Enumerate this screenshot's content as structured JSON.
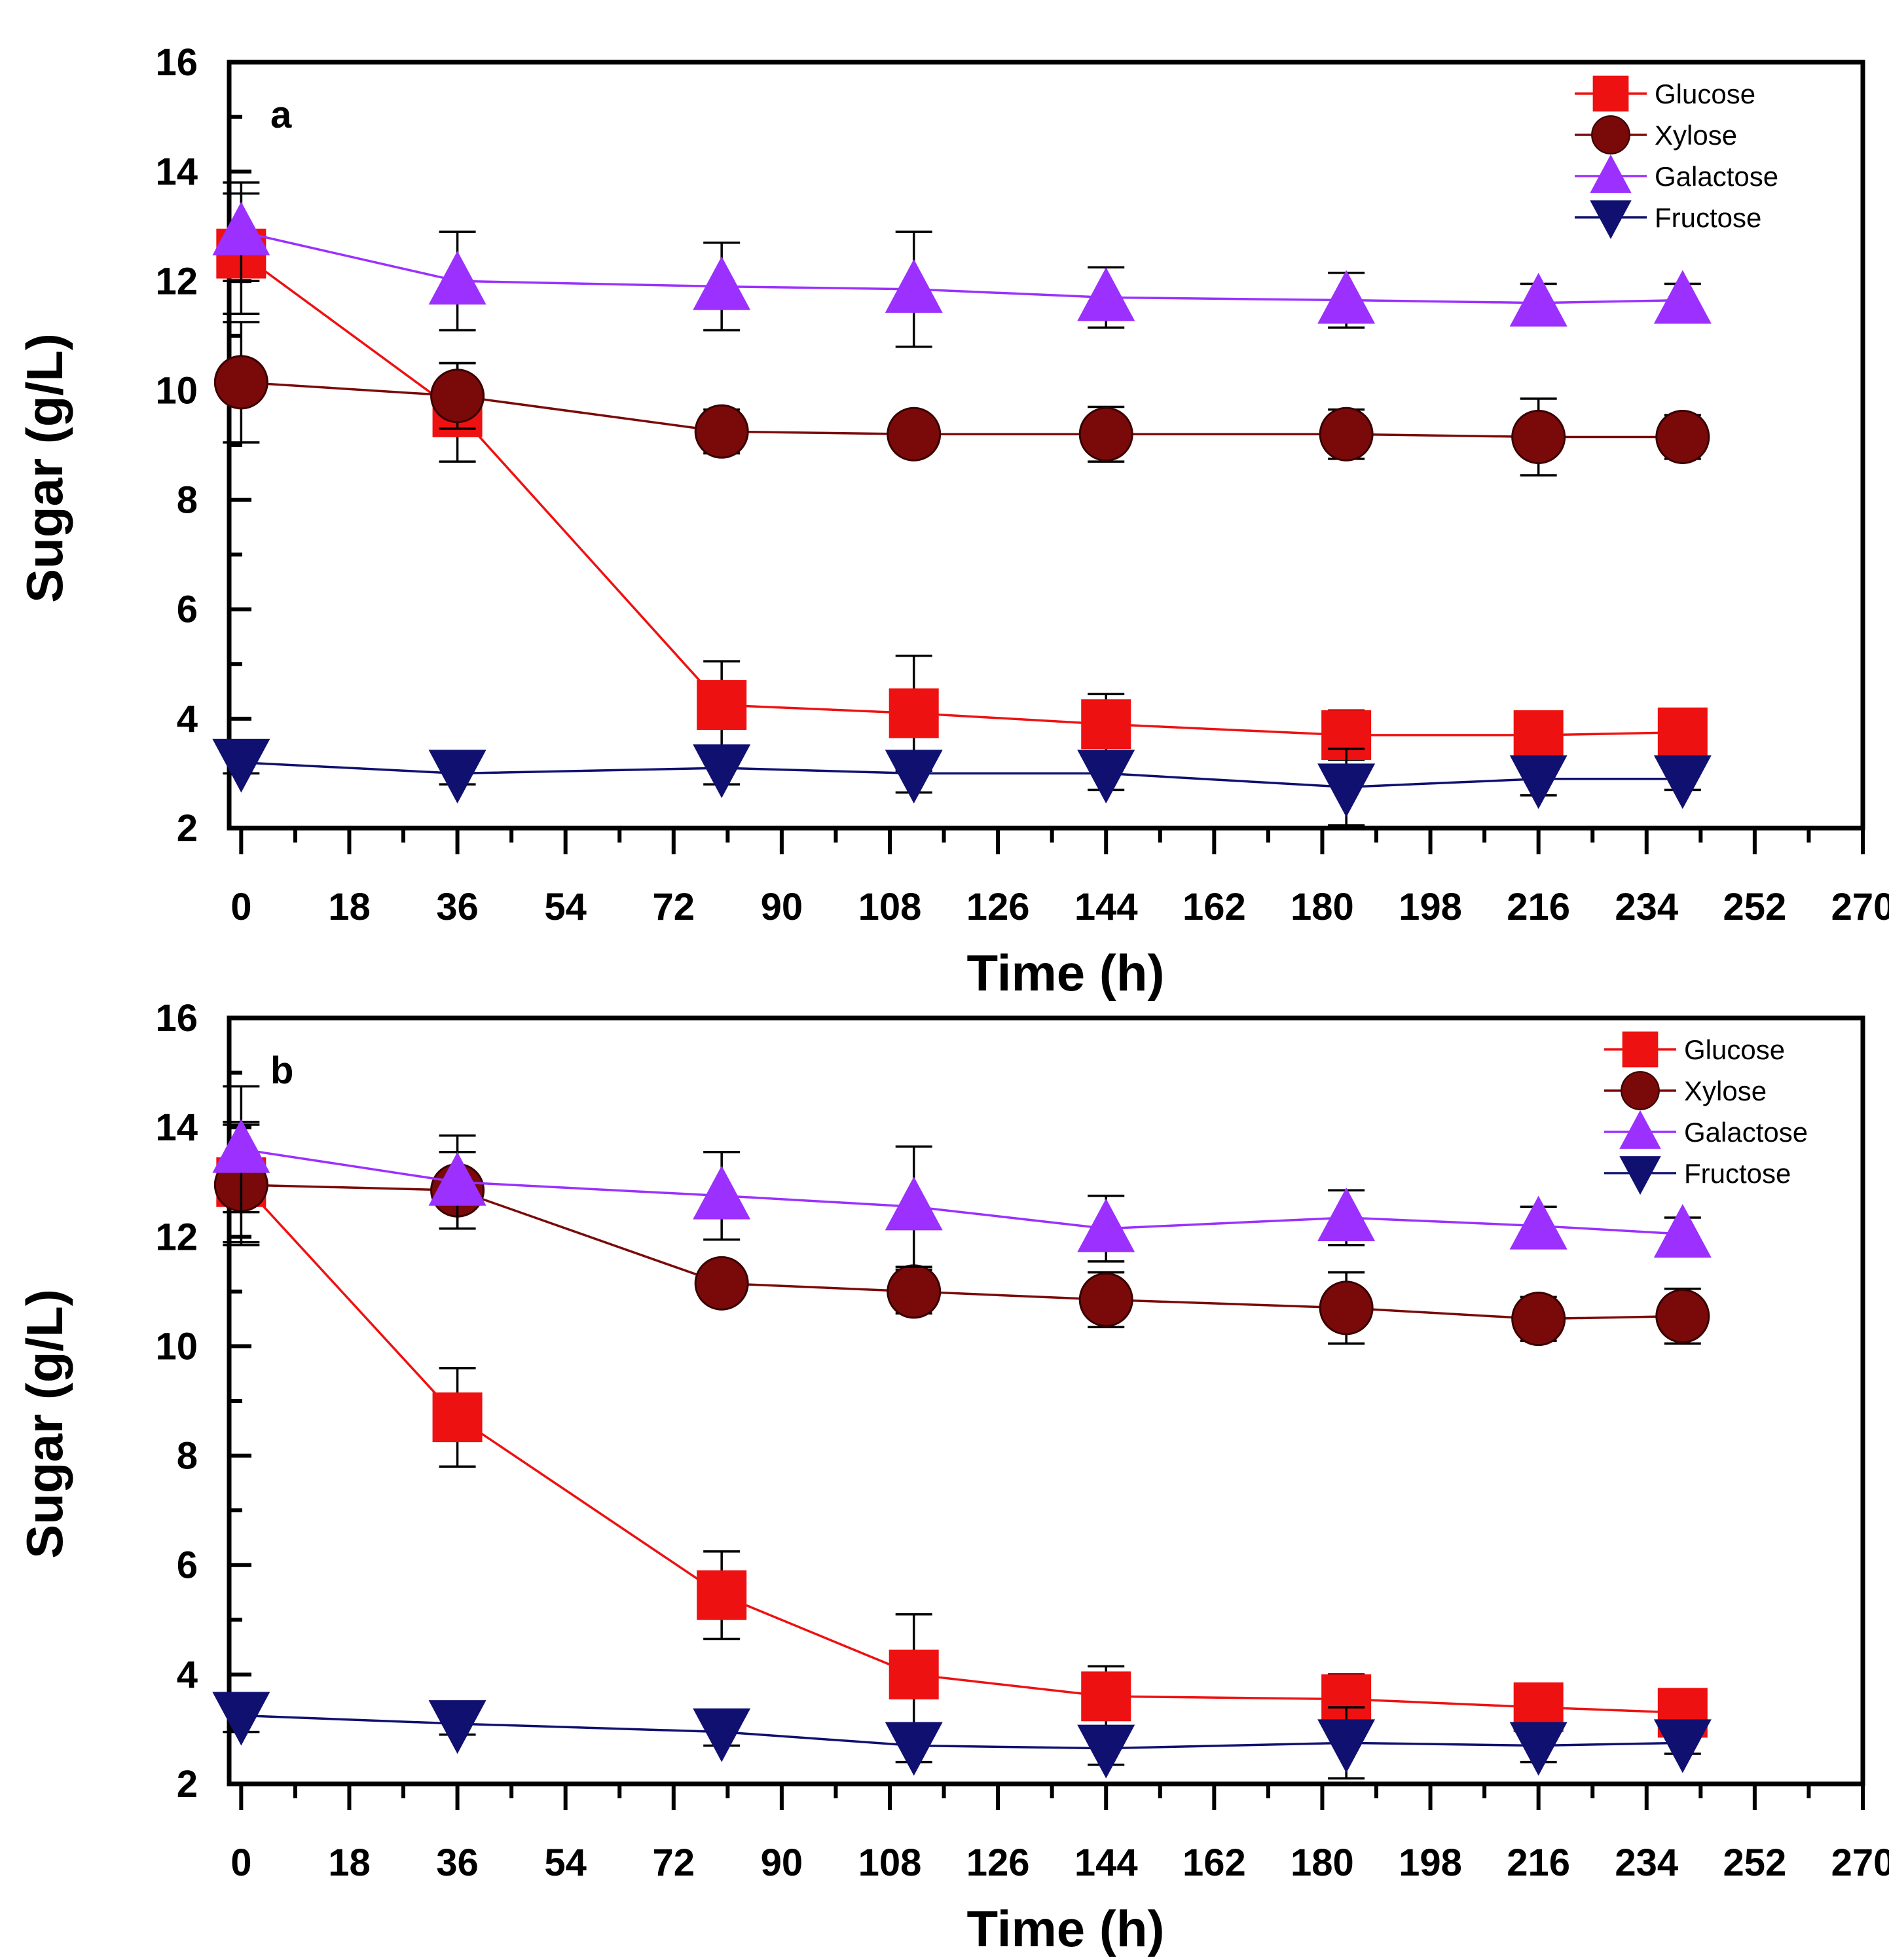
{
  "chart_data": [
    {
      "type": "line",
      "panel_label": "a",
      "xlabel": "Time (h)",
      "ylabel": "Sugar (g/L)",
      "xlim": [
        -2,
        270
      ],
      "ylim": [
        2,
        16
      ],
      "x_ticks": [
        0,
        18,
        36,
        54,
        72,
        90,
        108,
        126,
        144,
        162,
        180,
        198,
        216,
        234,
        252,
        270
      ],
      "y_ticks": [
        2,
        4,
        6,
        8,
        10,
        12,
        14,
        16
      ],
      "legend_position": "top-right",
      "x": [
        0,
        36,
        80,
        112,
        144,
        184,
        216,
        240
      ],
      "series": [
        {
          "name": "Glucose",
          "marker": "square",
          "color": "#ee1111",
          "values": [
            12.5,
            9.6,
            4.25,
            4.1,
            3.9,
            3.7,
            3.7,
            3.75
          ],
          "errors": [
            1.1,
            0.9,
            0.8,
            1.05,
            0.55,
            0.45,
            0.35,
            0.3
          ]
        },
        {
          "name": "Xylose",
          "marker": "circle",
          "color": "#7a0a0a",
          "values": [
            10.15,
            9.9,
            9.25,
            9.2,
            9.2,
            9.2,
            9.15,
            9.15
          ],
          "errors": [
            1.1,
            0.6,
            0.4,
            0.35,
            0.5,
            0.45,
            0.7,
            0.4
          ]
        },
        {
          "name": "Galactose",
          "marker": "triangle-up",
          "color": "#9b30ff",
          "values": [
            12.9,
            12.0,
            11.9,
            11.85,
            11.7,
            11.65,
            11.6,
            11.65
          ],
          "errors": [
            0.9,
            0.9,
            0.8,
            1.05,
            0.55,
            0.5,
            0.35,
            0.3
          ]
        },
        {
          "name": "Fructose",
          "marker": "triangle-down",
          "color": "#101070",
          "values": [
            3.2,
            3.0,
            3.1,
            3.0,
            3.0,
            2.75,
            2.9,
            2.9
          ],
          "errors": [
            0.2,
            0.2,
            0.3,
            0.35,
            0.3,
            0.7,
            0.3,
            0.2
          ]
        }
      ]
    },
    {
      "type": "line",
      "panel_label": "b",
      "xlabel": "Time (h)",
      "ylabel": "Sugar (g/L)",
      "xlim": [
        -2,
        270
      ],
      "ylim": [
        2,
        16
      ],
      "x_ticks": [
        0,
        18,
        36,
        54,
        72,
        90,
        108,
        126,
        144,
        162,
        180,
        198,
        216,
        234,
        252,
        270
      ],
      "y_ticks": [
        2,
        4,
        6,
        8,
        10,
        12,
        14,
        16
      ],
      "legend_position": "top-right",
      "x": [
        0,
        36,
        80,
        112,
        144,
        184,
        216,
        240
      ],
      "series": [
        {
          "name": "Glucose",
          "marker": "square",
          "color": "#ee1111",
          "values": [
            13.0,
            8.7,
            5.45,
            4.0,
            3.6,
            3.55,
            3.4,
            3.3
          ],
          "errors": [
            1.1,
            0.9,
            0.8,
            1.1,
            0.55,
            0.45,
            0.3,
            0.3
          ]
        },
        {
          "name": "Xylose",
          "marker": "circle",
          "color": "#7a0a0a",
          "values": [
            12.95,
            12.85,
            11.15,
            11.0,
            10.85,
            10.7,
            10.5,
            10.55
          ],
          "errors": [
            1.1,
            0.7,
            0.3,
            0.4,
            0.5,
            0.65,
            0.4,
            0.5
          ]
        },
        {
          "name": "Galactose",
          "marker": "triangle-up",
          "color": "#9b30ff",
          "values": [
            13.6,
            13.0,
            12.75,
            12.55,
            12.15,
            12.35,
            12.2,
            12.05
          ],
          "errors": [
            1.15,
            0.85,
            0.8,
            1.1,
            0.6,
            0.5,
            0.35,
            0.3
          ]
        },
        {
          "name": "Fructose",
          "marker": "triangle-down",
          "color": "#101070",
          "values": [
            3.25,
            3.1,
            2.95,
            2.7,
            2.65,
            2.75,
            2.7,
            2.75
          ],
          "errors": [
            0.3,
            0.2,
            0.25,
            0.3,
            0.3,
            0.65,
            0.3,
            0.2
          ]
        }
      ]
    }
  ]
}
